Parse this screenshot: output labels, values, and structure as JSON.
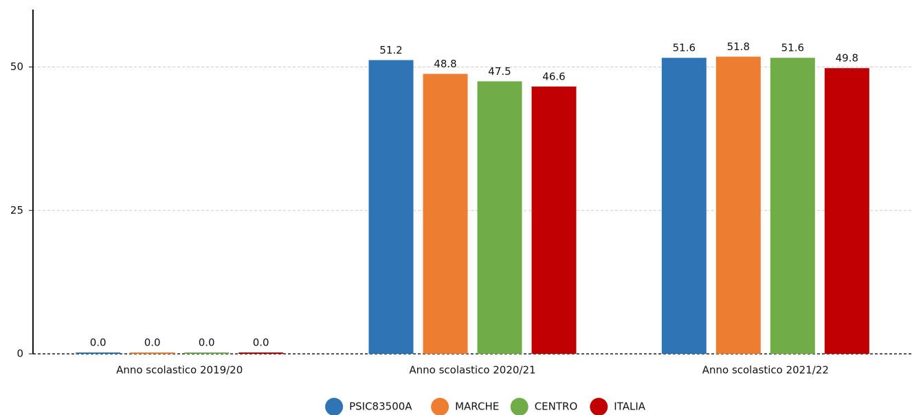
{
  "chart_data": {
    "type": "bar",
    "categories": [
      "Anno scolastico 2019/20",
      "Anno scolastico 2020/21",
      "Anno scolastico 2021/22"
    ],
    "series": [
      {
        "name": "PSIC83500A",
        "color": "#2e75b6",
        "values": [
          0,
          51.2,
          51.6
        ],
        "value_labels": [
          "0.0",
          "51.2",
          "51.6"
        ]
      },
      {
        "name": "MARCHE",
        "color": "#ed7d31",
        "values": [
          0,
          48.8,
          51.8
        ],
        "value_labels": [
          "0.0",
          "48.8",
          "51.8"
        ]
      },
      {
        "name": "CENTRO",
        "color": "#70ad47",
        "values": [
          0,
          47.5,
          51.6
        ],
        "value_labels": [
          "0.0",
          "47.5",
          "51.6"
        ]
      },
      {
        "name": "ITALIA",
        "color": "#c00000",
        "values": [
          0,
          46.6,
          49.8
        ],
        "value_labels": [
          "0.0",
          "46.6",
          "49.8"
        ]
      }
    ],
    "ylim": [
      0,
      60
    ],
    "yticks": [
      0,
      25,
      50
    ],
    "grid": true,
    "legend": "bottom"
  }
}
